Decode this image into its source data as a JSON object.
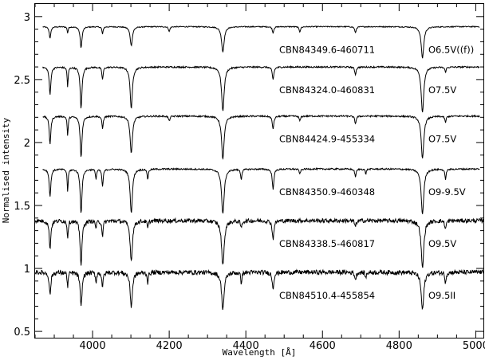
{
  "chart_data": {
    "type": "line",
    "xlabel": "Wavelength [Å]",
    "ylabel": "Normalised intensity",
    "xlim": [
      3850,
      5020
    ],
    "ylim": [
      0.45,
      3.1
    ],
    "xticks": [
      4000,
      4200,
      4400,
      4600,
      4800,
      5000
    ],
    "yticks": [
      0.5,
      1,
      1.5,
      2,
      2.5,
      3
    ],
    "x_tick_labels": [
      "4000",
      "4200",
      "4400",
      "4600",
      "4800",
      "5000"
    ],
    "y_tick_labels": [
      "0.5",
      "1",
      "1.5",
      "2",
      "2.5",
      "3"
    ],
    "grid": false,
    "series": [
      {
        "name": "CBN84349.6-460711",
        "spectral_type": "O6.5V((f))",
        "continuum": 2.92,
        "x_start": 3870,
        "x_end": 5010,
        "noise": 0.004,
        "lines": [
          [
            3889,
            0.09,
            2.5
          ],
          [
            3935,
            0.05,
            1.5
          ],
          [
            3970,
            0.17,
            2.8
          ],
          [
            4026,
            0.06,
            1.8
          ],
          [
            4101,
            0.15,
            3.5
          ],
          [
            4200,
            0.04,
            2
          ],
          [
            4340,
            0.2,
            4
          ],
          [
            4471,
            0.05,
            2.2
          ],
          [
            4541,
            0.04,
            2.2
          ],
          [
            4686,
            0.05,
            2.2
          ],
          [
            4861,
            0.25,
            4
          ]
        ]
      },
      {
        "name": "CBN84324.0-460831",
        "spectral_type": "O7.5V",
        "continuum": 2.6,
        "x_start": 3870,
        "x_end": 5010,
        "noise": 0.006,
        "lines": [
          [
            3889,
            0.22,
            2.5
          ],
          [
            3935,
            0.16,
            1.5
          ],
          [
            3970,
            0.33,
            2.8
          ],
          [
            4026,
            0.1,
            2
          ],
          [
            4101,
            0.33,
            3.5
          ],
          [
            4340,
            0.35,
            4
          ],
          [
            4471,
            0.1,
            2.5
          ],
          [
            4686,
            0.06,
            2.2
          ],
          [
            4861,
            0.36,
            4
          ],
          [
            4921,
            0.04,
            2
          ]
        ]
      },
      {
        "name": "CBN84424.9-455334",
        "spectral_type": "O7.5V",
        "continuum": 2.21,
        "x_start": 3870,
        "x_end": 5010,
        "noise": 0.006,
        "lines": [
          [
            3889,
            0.22,
            2.5
          ],
          [
            3935,
            0.16,
            1.5
          ],
          [
            3970,
            0.33,
            2.8
          ],
          [
            4026,
            0.1,
            2
          ],
          [
            4101,
            0.3,
            3.5
          ],
          [
            4200,
            0.04,
            2
          ],
          [
            4340,
            0.34,
            4
          ],
          [
            4471,
            0.1,
            2.5
          ],
          [
            4541,
            0.04,
            2
          ],
          [
            4686,
            0.06,
            2.2
          ],
          [
            4861,
            0.34,
            4
          ],
          [
            4921,
            0.05,
            2
          ]
        ]
      },
      {
        "name": "CBN84350.9-460348",
        "spectral_type": "O9-9.5V",
        "continuum": 1.79,
        "x_start": 3870,
        "x_end": 5010,
        "noise": 0.006,
        "lines": [
          [
            3889,
            0.22,
            2.5
          ],
          [
            3935,
            0.18,
            1.5
          ],
          [
            3970,
            0.35,
            2.8
          ],
          [
            4009,
            0.08,
            1.6
          ],
          [
            4026,
            0.14,
            2
          ],
          [
            4101,
            0.35,
            3.5
          ],
          [
            4144,
            0.08,
            1.8
          ],
          [
            4340,
            0.36,
            4
          ],
          [
            4388,
            0.08,
            2
          ],
          [
            4471,
            0.16,
            2.5
          ],
          [
            4541,
            0.04,
            2
          ],
          [
            4686,
            0.06,
            2.2
          ],
          [
            4713,
            0.04,
            1.6
          ],
          [
            4861,
            0.36,
            4
          ],
          [
            4921,
            0.08,
            2
          ]
        ]
      },
      {
        "name": "CBN84338.5-460817",
        "spectral_type": "O9.5V",
        "continuum": 1.38,
        "x_start": 3850,
        "x_end": 5020,
        "noise": 0.016,
        "lines": [
          [
            3889,
            0.22,
            2.5
          ],
          [
            3935,
            0.14,
            1.5
          ],
          [
            3970,
            0.36,
            2.8
          ],
          [
            4009,
            0.06,
            1.6
          ],
          [
            4026,
            0.12,
            2
          ],
          [
            4101,
            0.32,
            3.5
          ],
          [
            4144,
            0.06,
            1.8
          ],
          [
            4340,
            0.36,
            4
          ],
          [
            4388,
            0.06,
            2
          ],
          [
            4471,
            0.15,
            2.5
          ],
          [
            4686,
            0.05,
            2.2
          ],
          [
            4861,
            0.38,
            4
          ],
          [
            4921,
            0.07,
            2
          ]
        ]
      },
      {
        "name": "CBN84510.4-455854",
        "spectral_type": "O9.5II",
        "continuum": 0.97,
        "x_start": 3850,
        "x_end": 5020,
        "noise": 0.018,
        "lines": [
          [
            3889,
            0.18,
            2.5
          ],
          [
            3935,
            0.12,
            1.5
          ],
          [
            3970,
            0.28,
            2.8
          ],
          [
            4009,
            0.08,
            1.6
          ],
          [
            4026,
            0.12,
            2
          ],
          [
            4101,
            0.27,
            3.5
          ],
          [
            4144,
            0.08,
            1.8
          ],
          [
            4340,
            0.29,
            4
          ],
          [
            4388,
            0.08,
            2
          ],
          [
            4471,
            0.13,
            2.5
          ],
          [
            4686,
            0.06,
            2.2
          ],
          [
            4713,
            0.05,
            1.6
          ],
          [
            4861,
            0.3,
            4
          ],
          [
            4921,
            0.08,
            2
          ]
        ]
      }
    ]
  }
}
